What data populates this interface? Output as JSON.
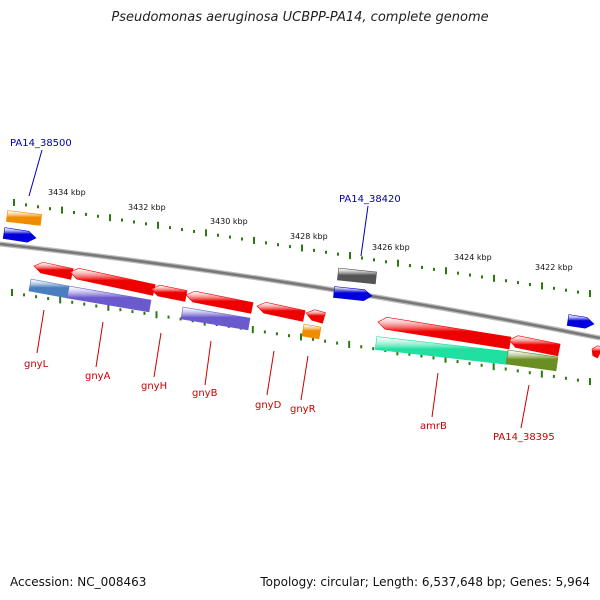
{
  "title": "Pseudomonas aeruginosa UCBPP-PA14, complete genome",
  "footer": {
    "accession": "Accession: NC_008463",
    "summary": "Topology: circular; Length: 6,537,648 bp; Genes: 5,964"
  },
  "colors": {
    "backbone": "#777777",
    "ticks": "#2a7a10",
    "gene_label": "#cc0000",
    "locus_label": "#0000aa",
    "forward_gene": "#0000dd",
    "reverse_gene": "#ee0000"
  },
  "ticks": [
    {
      "label": "3434 kbp"
    },
    {
      "label": "3432 kbp"
    },
    {
      "label": "3430 kbp"
    },
    {
      "label": "3428 kbp"
    },
    {
      "label": "3426 kbp"
    },
    {
      "label": "3424 kbp"
    },
    {
      "label": "3422 kbp"
    }
  ],
  "locus_labels": [
    {
      "text": "PA14_38500"
    },
    {
      "text": "PA14_38420"
    }
  ],
  "gene_labels": [
    {
      "text": "gnyL"
    },
    {
      "text": "gnyA"
    },
    {
      "text": "gnyH"
    },
    {
      "text": "gnyB"
    },
    {
      "text": "gnyD"
    },
    {
      "text": "gnyR"
    },
    {
      "text": "amrB"
    },
    {
      "text": "PA14_38395"
    }
  ],
  "feature_colors": {
    "orange": "#f08c00",
    "blue": "#0000dd",
    "gray": "#555555",
    "red": "#ee0000",
    "steelblue": "#4a7fbf",
    "purple": "#6a5acd",
    "spring": "#1fe0a0",
    "olive": "#6b8e23"
  }
}
